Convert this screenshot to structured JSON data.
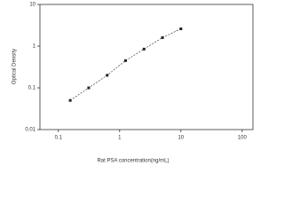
{
  "chart_data": {
    "type": "line",
    "x_label": "Rat PSA concentration(ng/mL)",
    "y_label": "Optical Density",
    "x": [
      0.156,
      0.3125,
      0.625,
      1.25,
      2.5,
      5,
      10
    ],
    "values": [
      0.05,
      0.1,
      0.2,
      0.45,
      0.85,
      1.6,
      2.6
    ],
    "color": "#222222",
    "x_log": true,
    "y_log": true,
    "xlim": [
      0.05,
      150
    ],
    "xticks": [
      0.1,
      1,
      10,
      100
    ],
    "ylim": [
      0.01,
      10
    ],
    "yticks": [
      0.01,
      0.1,
      1,
      10
    ],
    "grid": false
  }
}
